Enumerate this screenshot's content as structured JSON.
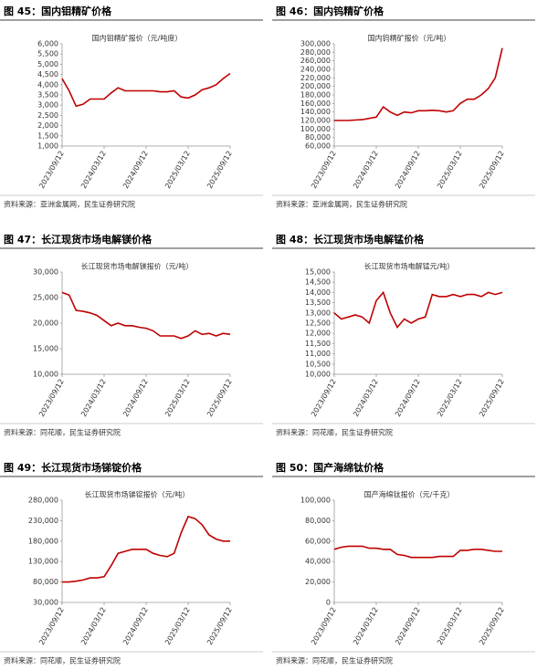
{
  "chart_data": [
    {
      "type": "line",
      "figure": "图 45：国内钼精矿价格",
      "title": "国内钼精矿报价（元/吨度）",
      "source": "资料来源：亚洲金属网，民生证券研究院",
      "color": "#c00000",
      "categories": [
        "2023/09/12",
        null,
        null,
        null,
        null,
        null,
        "2024/03/12",
        null,
        null,
        null,
        null,
        null,
        "2024/09/12",
        null,
        null,
        null,
        null,
        null,
        "2025/03/12",
        null,
        null,
        null,
        null,
        null,
        "2025/09/12"
      ],
      "values": [
        4300,
        3700,
        2950,
        3050,
        3300,
        3300,
        3300,
        3600,
        3850,
        3700,
        3700,
        3700,
        3700,
        3700,
        3650,
        3650,
        3700,
        3400,
        3350,
        3500,
        3750,
        3850,
        4000,
        4300,
        4550
      ],
      "ylim": [
        1000,
        6000
      ],
      "yticks": [
        {
          "value": 1000,
          "label": "1,000"
        },
        {
          "value": 1500,
          "label": "1,500"
        },
        {
          "value": 2000,
          "label": "2,000"
        },
        {
          "value": 2500,
          "label": "2,500"
        },
        {
          "value": 3000,
          "label": "3,000"
        },
        {
          "value": 3500,
          "label": "3,500"
        },
        {
          "value": 4000,
          "label": "4,000"
        },
        {
          "value": 4500,
          "label": "4,500"
        },
        {
          "value": 5000,
          "label": "5,000"
        },
        {
          "value": 5500,
          "label": "5,500"
        },
        {
          "value": 6000,
          "label": "6,000"
        }
      ]
    },
    {
      "type": "line",
      "figure": "图 46：国内钨精矿价格",
      "title": "国内钨精矿报价（元/吨）",
      "source": "资料来源：亚洲金属网，民生证券研究院",
      "color": "#c00000",
      "categories": [
        "2023/09/12",
        null,
        null,
        null,
        null,
        null,
        "2024/03/12",
        null,
        null,
        null,
        null,
        null,
        "2024/09/12",
        null,
        null,
        null,
        null,
        null,
        "2025/03/12",
        null,
        null,
        null,
        null,
        null,
        "2025/09/12"
      ],
      "values": [
        120000,
        120000,
        120000,
        121000,
        122000,
        125000,
        128000,
        152000,
        140000,
        132000,
        140000,
        138000,
        143000,
        143000,
        144000,
        143000,
        140000,
        143000,
        160000,
        170000,
        170000,
        180000,
        195000,
        220000,
        290000
      ],
      "ylim": [
        60000,
        300000
      ],
      "yticks": [
        {
          "value": 60000,
          "label": "60,000"
        },
        {
          "value": 80000,
          "label": "80,000"
        },
        {
          "value": 100000,
          "label": "100,000"
        },
        {
          "value": 120000,
          "label": "120,000"
        },
        {
          "value": 140000,
          "label": "140,000"
        },
        {
          "value": 160000,
          "label": "160,000"
        },
        {
          "value": 180000,
          "label": "180,000"
        },
        {
          "value": 200000,
          "label": "200,000"
        },
        {
          "value": 220000,
          "label": "220,000"
        },
        {
          "value": 240000,
          "label": "240,000"
        },
        {
          "value": 260000,
          "label": "260,000"
        },
        {
          "value": 280000,
          "label": "280,000"
        },
        {
          "value": 300000,
          "label": "300,000"
        }
      ]
    },
    {
      "type": "line",
      "figure": "图 47：长江现货市场电解镁价格",
      "title": "长江现货市场电解镁报价（元/吨）",
      "source": "资料来源：同花顺，民生证券研究院",
      "color": "#c00000",
      "categories": [
        "2023/09/12",
        null,
        null,
        null,
        null,
        null,
        "2024/03/12",
        null,
        null,
        null,
        null,
        null,
        "2024/09/12",
        null,
        null,
        null,
        null,
        null,
        "2025/03/12",
        null,
        null,
        null,
        null,
        null,
        "2025/09/12"
      ],
      "values": [
        26000,
        25500,
        22500,
        22300,
        22000,
        21500,
        20500,
        19500,
        20000,
        19500,
        19500,
        19200,
        19000,
        18500,
        17500,
        17500,
        17500,
        17000,
        17500,
        18500,
        17800,
        18000,
        17500,
        18000,
        17800
      ],
      "ylim": [
        10000,
        30000
      ],
      "yticks": [
        {
          "value": 10000,
          "label": "10,000"
        },
        {
          "value": 15000,
          "label": "15,000"
        },
        {
          "value": 20000,
          "label": "20,000"
        },
        {
          "value": 25000,
          "label": "25,000"
        },
        {
          "value": 30000,
          "label": "30,000"
        }
      ]
    },
    {
      "type": "line",
      "figure": "图 48：长江现货市场电解锰价格",
      "title": "长江现货市场电解锰元/吨）",
      "source": "资料来源：同花顺，民生证券研究院",
      "color": "#c00000",
      "categories": [
        "2023/09/12",
        null,
        null,
        null,
        null,
        null,
        "2024/03/12",
        null,
        null,
        null,
        null,
        null,
        "2024/09/12",
        null,
        null,
        null,
        null,
        null,
        "2025/03/12",
        null,
        null,
        null,
        null,
        null,
        "2025/09/12"
      ],
      "values": [
        13000,
        12700,
        12800,
        12900,
        12800,
        12500,
        13600,
        14000,
        13000,
        12300,
        12700,
        12500,
        12700,
        12800,
        13900,
        13800,
        13800,
        13900,
        13800,
        13900,
        13900,
        13800,
        14000,
        13900,
        14000
      ],
      "ylim": [
        10000,
        15000
      ],
      "yticks": [
        {
          "value": 10000,
          "label": "10,000"
        },
        {
          "value": 10500,
          "label": "10,500"
        },
        {
          "value": 11000,
          "label": "11,000"
        },
        {
          "value": 11500,
          "label": "11,500"
        },
        {
          "value": 12000,
          "label": "12,000"
        },
        {
          "value": 12500,
          "label": "12,500"
        },
        {
          "value": 13000,
          "label": "13,000"
        },
        {
          "value": 13500,
          "label": "13,500"
        },
        {
          "value": 14000,
          "label": "14,000"
        },
        {
          "value": 14500,
          "label": "14,500"
        },
        {
          "value": 15000,
          "label": "15,000"
        }
      ]
    },
    {
      "type": "line",
      "figure": "图 49：长江现货市场锑锭价格",
      "title": "长江现货市场锑锭报价（元/吨）",
      "source": "资料来源：同花顺，民生证券研究院",
      "color": "#c00000",
      "categories": [
        "2023/09/12",
        null,
        null,
        null,
        null,
        null,
        "2024/03/12",
        null,
        null,
        null,
        null,
        null,
        "2024/09/12",
        null,
        null,
        null,
        null,
        null,
        "2025/03/12",
        null,
        null,
        null,
        null,
        null,
        "2025/09/12"
      ],
      "values": [
        80000,
        80000,
        82000,
        85000,
        90000,
        90000,
        93000,
        120000,
        150000,
        155000,
        160000,
        160000,
        160000,
        150000,
        145000,
        142000,
        150000,
        200000,
        240000,
        235000,
        220000,
        195000,
        185000,
        180000,
        180000
      ],
      "ylim": [
        30000,
        280000
      ],
      "yticks": [
        {
          "value": 30000,
          "label": "30,000"
        },
        {
          "value": 80000,
          "label": "80,000"
        },
        {
          "value": 130000,
          "label": "130,000"
        },
        {
          "value": 180000,
          "label": "180,000"
        },
        {
          "value": 230000,
          "label": "230,000"
        },
        {
          "value": 280000,
          "label": "280,000"
        }
      ]
    },
    {
      "type": "line",
      "figure": "图 50：国产海绵钛价格",
      "title": "国产海绵钛报价（元/千克）",
      "source": "资料来源：同花顺，民生证券研究院",
      "color": "#c00000",
      "categories": [
        "2023/09/12",
        null,
        null,
        null,
        null,
        null,
        "2024/03/12",
        null,
        null,
        null,
        null,
        null,
        "2024/09/12",
        null,
        null,
        null,
        null,
        null,
        "2025/03/12",
        null,
        null,
        null,
        null,
        null,
        "2025/09/12"
      ],
      "values": [
        52000,
        54000,
        55000,
        55000,
        55000,
        53000,
        53000,
        52000,
        52000,
        47000,
        46000,
        44000,
        44000,
        44000,
        44000,
        45000,
        45000,
        45000,
        51000,
        51000,
        52000,
        52000,
        51000,
        50000,
        50000
      ],
      "ylim": [
        0,
        100000
      ],
      "yticks": [
        0,
        {
          "value": 20000,
          "label": "20,000"
        },
        {
          "value": 40000,
          "label": "40,000"
        },
        {
          "value": 60000,
          "label": "60,000"
        },
        {
          "value": 80000,
          "label": "80,000"
        },
        {
          "value": 100000,
          "label": "100,000"
        }
      ]
    }
  ]
}
